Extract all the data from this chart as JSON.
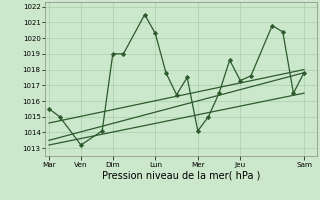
{
  "background_color": "#cce8cc",
  "grid_color": "#aaccaa",
  "line_color": "#2d5a2d",
  "marker_color": "#2d5a2d",
  "xlabel": "Pression niveau de la mer( hPa )",
  "xlabel_fontsize": 7.0,
  "ylim": [
    1012.5,
    1022.3
  ],
  "yticks": [
    1013,
    1014,
    1015,
    1016,
    1017,
    1018,
    1019,
    1020,
    1021,
    1022
  ],
  "xtick_labels": [
    "Mar",
    "Ven",
    "Dim",
    "Lun",
    "Mer",
    "Jeu",
    "Sam"
  ],
  "xtick_positions": [
    0,
    1.5,
    3.0,
    5.0,
    7.0,
    9.0,
    12.0
  ],
  "series1_x": [
    0,
    0.5,
    1.5,
    2.5,
    3.0,
    3.5,
    4.5,
    5.0,
    5.5,
    6.0,
    6.5,
    7.0,
    7.5,
    8.0,
    8.5,
    9.0,
    9.5,
    10.5,
    11.0,
    11.5,
    12.0
  ],
  "series1_y": [
    1015.5,
    1015.0,
    1013.2,
    1014.1,
    1019.0,
    1019.0,
    1021.5,
    1020.3,
    1017.8,
    1016.4,
    1017.5,
    1014.1,
    1015.0,
    1016.5,
    1018.6,
    1017.3,
    1017.6,
    1020.8,
    1020.4,
    1016.5,
    1017.8
  ],
  "trend1_x": [
    0,
    12.0
  ],
  "trend1_y": [
    1013.5,
    1017.8
  ],
  "trend2_x": [
    0,
    12.0
  ],
  "trend2_y": [
    1013.2,
    1016.5
  ],
  "trend3_x": [
    0,
    12.0
  ],
  "trend3_y": [
    1014.6,
    1018.0
  ]
}
